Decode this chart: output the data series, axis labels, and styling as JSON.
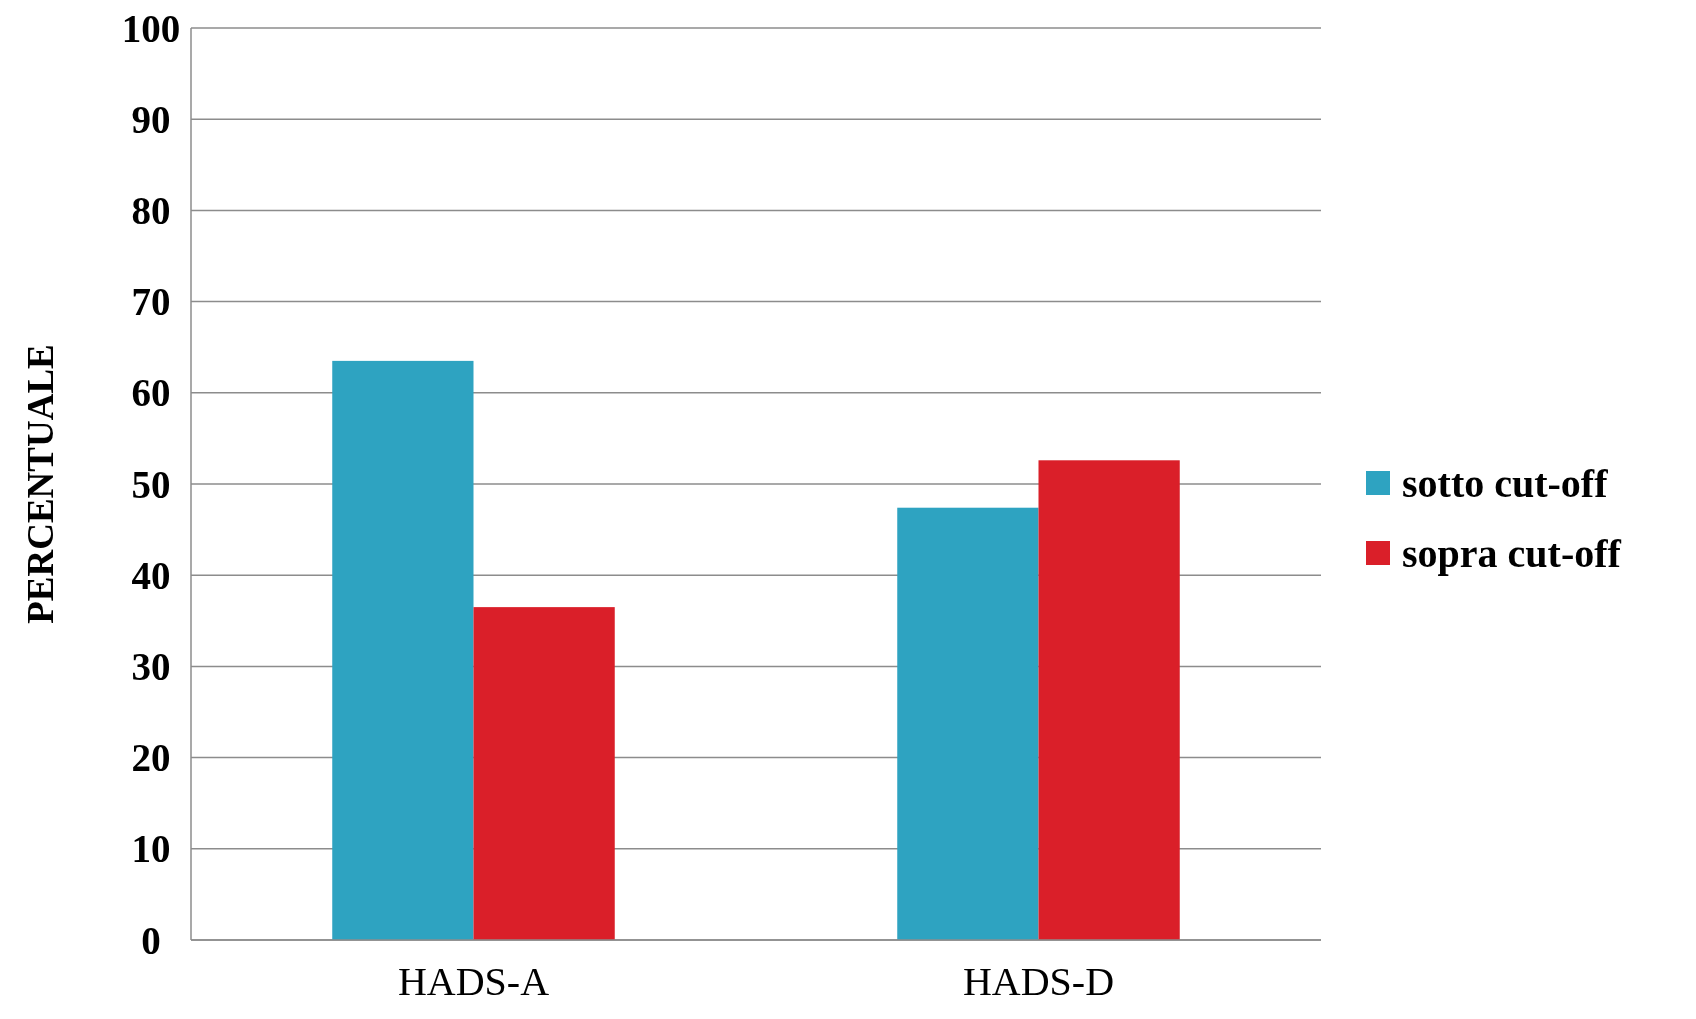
{
  "chart_data": {
    "type": "bar",
    "ylabel": "PERCENTUALE",
    "categories": [
      "HADS-A",
      "HADS-D"
    ],
    "series": [
      {
        "name": "sotto cut-off",
        "color": "#2ea3c1",
        "values": [
          63.5,
          47.4
        ]
      },
      {
        "name": "sopra cut-off",
        "color": "#da1f29",
        "values": [
          36.5,
          52.6
        ]
      }
    ],
    "ylim": [
      0,
      100
    ],
    "yticks": [
      0,
      10,
      20,
      30,
      40,
      50,
      60,
      70,
      80,
      90,
      100
    ],
    "grid": "y",
    "legend": "right"
  }
}
